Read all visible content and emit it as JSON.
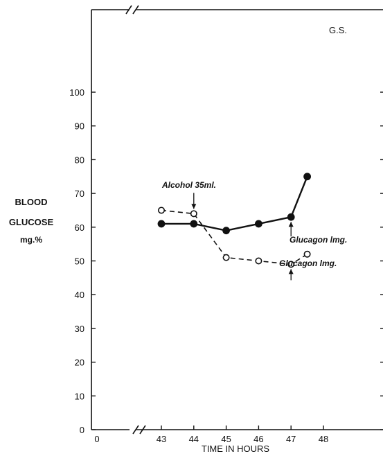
{
  "chart_data": {
    "type": "line",
    "title": "",
    "corner_label": "G.S.",
    "ylabel_lines": [
      "BLOOD",
      "GLUCOSE",
      "mg.%"
    ],
    "xlabel": "TIME IN HOURS",
    "ylim": [
      0,
      100
    ],
    "yticks": [
      0,
      10,
      20,
      30,
      40,
      50,
      60,
      70,
      80,
      90,
      100
    ],
    "xticks": [
      43,
      44,
      45,
      46,
      47,
      48
    ],
    "x_origin_label": "0",
    "x_axis_break": true,
    "grid": false,
    "legend": "none",
    "series": [
      {
        "style": "solid, filled circles",
        "x": [
          43,
          44,
          45,
          46,
          47,
          47.5
        ],
        "y": [
          61,
          61,
          59,
          61,
          63,
          75
        ]
      },
      {
        "style": "dashed, open circles",
        "x": [
          43,
          44,
          45,
          46,
          47,
          47.5
        ],
        "y": [
          65,
          64,
          51,
          50,
          49,
          52
        ]
      }
    ],
    "annotations": [
      {
        "text": "Alcohol 35ml.",
        "x": 44,
        "y": 64,
        "series": 1
      },
      {
        "text": "Glucagon lmg.",
        "x": 47,
        "y": 63,
        "series": 0
      },
      {
        "text": "Glucagon lmg.",
        "x": 47,
        "y": 49,
        "series": 1
      }
    ]
  }
}
